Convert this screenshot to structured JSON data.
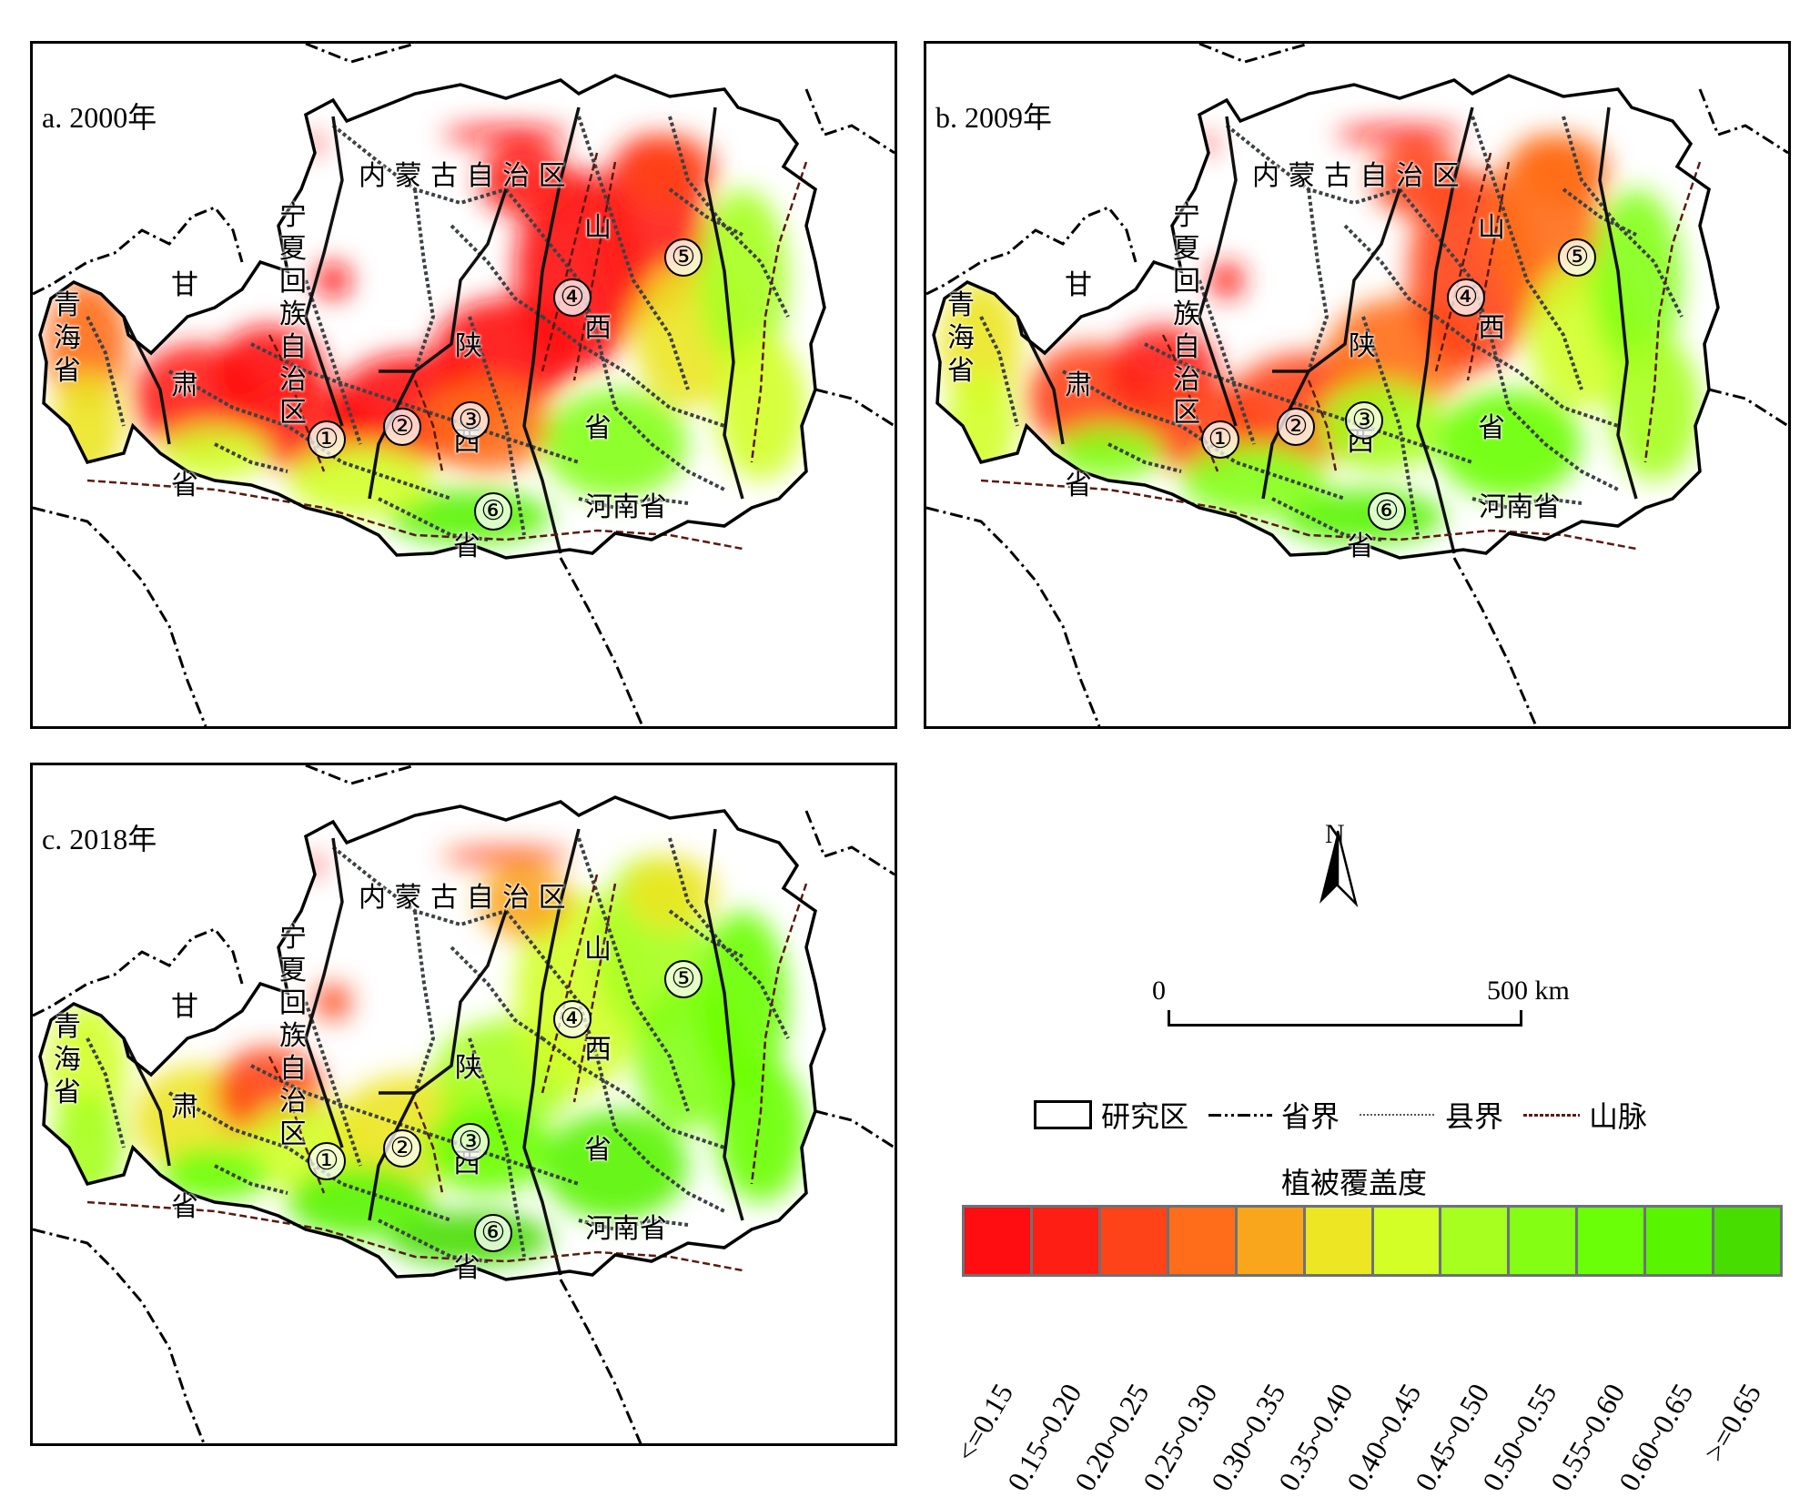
{
  "panels": [
    {
      "id": "a",
      "title": "a. 2000年"
    },
    {
      "id": "b",
      "title": "b. 2009年"
    },
    {
      "id": "c",
      "title": "c. 2018年"
    }
  ],
  "place_labels": {
    "inner_mongolia": "内 蒙 古 自 治 区",
    "ningxia": "宁夏回族自治区",
    "gansu_top": "甘",
    "gansu_mid": "肃",
    "gansu_bottom": "省",
    "qinghai": "青海省",
    "shaanxi_1": "陕",
    "shaanxi_2": "西",
    "shaanxi_3": "省",
    "shanxi_1": "山",
    "shanxi_2": "西",
    "shanxi_3": "省",
    "henan": "河南省"
  },
  "region_markers": [
    "①",
    "②",
    "③",
    "④",
    "⑤",
    "⑥"
  ],
  "coverage_level": {
    "2000": {
      "north_red_share": "high",
      "green_share": "low"
    },
    "2009": {
      "north_red_share": "medium",
      "green_share": "medium"
    },
    "2018": {
      "north_red_share": "low",
      "green_share": "high"
    }
  },
  "north_arrow": {
    "label": "N"
  },
  "scale_bar": {
    "start": "0",
    "end": "500 km"
  },
  "legend": {
    "items": [
      {
        "label": "研究区",
        "symbol": "study-area-box"
      },
      {
        "label": "省界",
        "symbol": "province-boundary-dash-dot"
      },
      {
        "label": "县界",
        "symbol": "county-boundary-dotted"
      },
      {
        "label": "山脉",
        "symbol": "mountain-dashed-brown"
      }
    ],
    "colorbar_title": "植被覆盖度",
    "classes": [
      {
        "label": "<=0.15",
        "color": "#ff0d10"
      },
      {
        "label": "0.15~0.20",
        "color": "#ff1e14"
      },
      {
        "label": "0.20~0.25",
        "color": "#ff4318"
      },
      {
        "label": "0.25~0.30",
        "color": "#ff6d1a"
      },
      {
        "label": "0.30~0.35",
        "color": "#f9a61d"
      },
      {
        "label": "0.35~0.40",
        "color": "#ece623"
      },
      {
        "label": "0.40~0.45",
        "color": "#d3ff27"
      },
      {
        "label": "0.45~0.50",
        "color": "#a6ff1f"
      },
      {
        "label": "0.50~0.55",
        "color": "#84ff14"
      },
      {
        "label": "0.55~0.60",
        "color": "#6aff06"
      },
      {
        "label": "0.60~0.65",
        "color": "#58f400"
      },
      {
        "label": ">=0.65",
        "color": "#47dd00"
      }
    ]
  },
  "colors": {
    "province_line": "#000000",
    "county_line": "#3c4246",
    "mountain_line": "#5a1a10",
    "frame": "#000000"
  }
}
